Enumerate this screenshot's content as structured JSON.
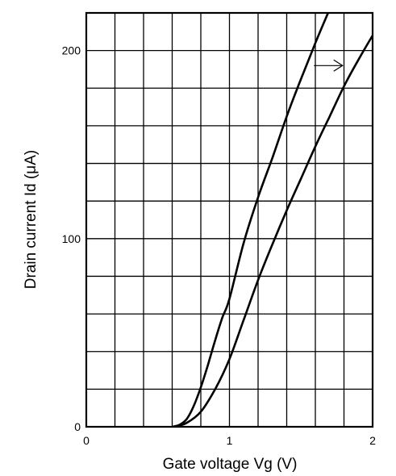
{
  "chart_data": {
    "type": "line",
    "title": "",
    "xlabel": "Gate voltage Vg (V)",
    "ylabel": "Drain current Id (μA)",
    "xlim": [
      0,
      2
    ],
    "ylim": [
      0,
      220
    ],
    "x_ticks": [
      {
        "value": 0,
        "label": "0"
      },
      {
        "value": 1,
        "label": "1"
      },
      {
        "value": 2,
        "label": "2"
      }
    ],
    "y_ticks": [
      {
        "value": 0,
        "label": "0"
      },
      {
        "value": 100,
        "label": "100"
      },
      {
        "value": 200,
        "label": "200"
      }
    ],
    "grid": true,
    "grid_x_step": 0.2,
    "grid_y_step": 20,
    "series": [
      {
        "x": [
          0.6,
          0.65,
          0.7,
          0.75,
          0.8,
          0.85,
          0.9,
          0.95,
          1.0,
          1.1,
          1.2,
          1.3,
          1.4,
          1.5,
          1.6,
          1.7
        ],
        "y": [
          0,
          1,
          4,
          11,
          21,
          33,
          46,
          58,
          68,
          98,
          122,
          143,
          165,
          185,
          204,
          222
        ]
      },
      {
        "x": [
          0.62,
          0.7,
          0.8,
          0.9,
          1.0,
          1.1,
          1.2,
          1.3,
          1.4,
          1.5,
          1.6,
          1.7,
          1.8,
          1.9,
          2.0
        ],
        "y": [
          0,
          2,
          8,
          20,
          36,
          57,
          78,
          97,
          115,
          132,
          149,
          165,
          181,
          195,
          208
        ]
      }
    ],
    "annotations": [
      {
        "type": "arrow",
        "direction": "right",
        "x_start": 1.59,
        "x_end": 1.79,
        "y": 192
      }
    ]
  }
}
